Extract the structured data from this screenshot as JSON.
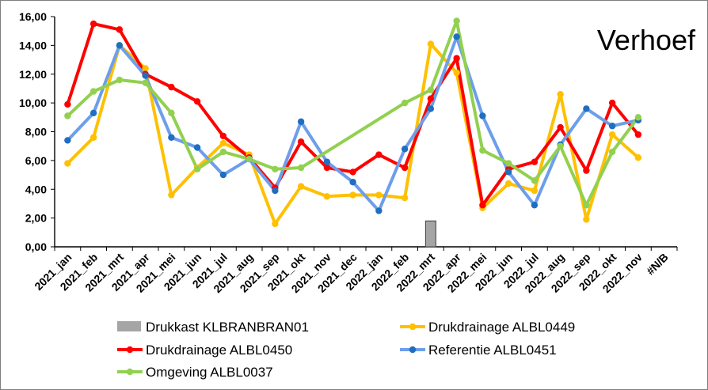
{
  "chart_data": {
    "type": "line",
    "title": "Verhoef",
    "categories": [
      "2021_jan",
      "2021_feb",
      "2021_mrt",
      "2021_apr",
      "2021_mei",
      "2021_jun",
      "2021_jul",
      "2021_aug",
      "2021_sep",
      "2021_okt",
      "2021_nov",
      "2021_dec",
      "2022_jan",
      "2022_feb",
      "2022_mrt",
      "2022_apr",
      "2022_mei",
      "2022_jun",
      "2022_jul",
      "2022_aug",
      "2022_sep",
      "2022_okt",
      "2022_nov",
      "#N/B"
    ],
    "ylim": [
      0,
      16
    ],
    "yticks": [
      "0,00",
      "2,00",
      "4,00",
      "6,00",
      "8,00",
      "10,00",
      "12,00",
      "14,00",
      "16,00"
    ],
    "grid": false,
    "legend_position": "bottom",
    "series": [
      {
        "name": "Drukkast KLBRANBRAN01",
        "kind": "bar",
        "color": "#a5a5a5",
        "values": [
          null,
          null,
          null,
          null,
          null,
          null,
          null,
          null,
          null,
          null,
          null,
          null,
          null,
          null,
          1.8,
          null,
          null,
          null,
          null,
          null,
          null,
          null,
          null,
          null
        ]
      },
      {
        "name": "Drukdrainage ALBL0449",
        "kind": "line",
        "color": "#ffc000",
        "values": [
          5.8,
          7.6,
          14.0,
          12.4,
          3.6,
          5.5,
          7.2,
          6.4,
          1.6,
          4.2,
          3.5,
          3.6,
          3.6,
          3.4,
          14.1,
          12.1,
          2.7,
          4.4,
          3.9,
          10.6,
          1.9,
          7.8,
          6.2,
          null
        ]
      },
      {
        "name": "Drukdrainage ALBL0450",
        "kind": "line",
        "color": "#ff0000",
        "values": [
          9.9,
          15.5,
          15.1,
          12.0,
          11.1,
          10.1,
          7.7,
          6.2,
          4.1,
          7.3,
          5.5,
          5.2,
          6.4,
          5.5,
          10.3,
          13.1,
          2.9,
          5.4,
          5.9,
          8.3,
          5.3,
          10.0,
          7.8,
          null
        ]
      },
      {
        "name": "Referentie ALBL0451",
        "kind": "line",
        "color": "#6d9eeb",
        "values": [
          7.4,
          9.3,
          14.0,
          11.9,
          7.6,
          6.9,
          5.0,
          6.1,
          3.9,
          8.7,
          5.9,
          4.5,
          2.5,
          6.8,
          9.6,
          14.6,
          9.1,
          5.2,
          2.9,
          7.1,
          9.6,
          8.4,
          8.8,
          null
        ]
      },
      {
        "name": "Omgeving ALBL0037",
        "kind": "line",
        "color": "#92d050",
        "values": [
          9.1,
          10.8,
          11.6,
          11.4,
          9.3,
          5.4,
          6.6,
          6.1,
          5.4,
          5.5,
          null,
          null,
          null,
          10.0,
          10.9,
          15.7,
          6.7,
          5.8,
          4.6,
          7.0,
          2.9,
          6.6,
          9.0,
          null
        ]
      }
    ]
  },
  "marker_colors": {
    "Drukdrainage ALBL0449": "#ffc000",
    "Drukdrainage ALBL0450": "#ff0000",
    "Referentie ALBL0451": "#1f6fc0",
    "Omgeving ALBL0037": "#92d050"
  }
}
